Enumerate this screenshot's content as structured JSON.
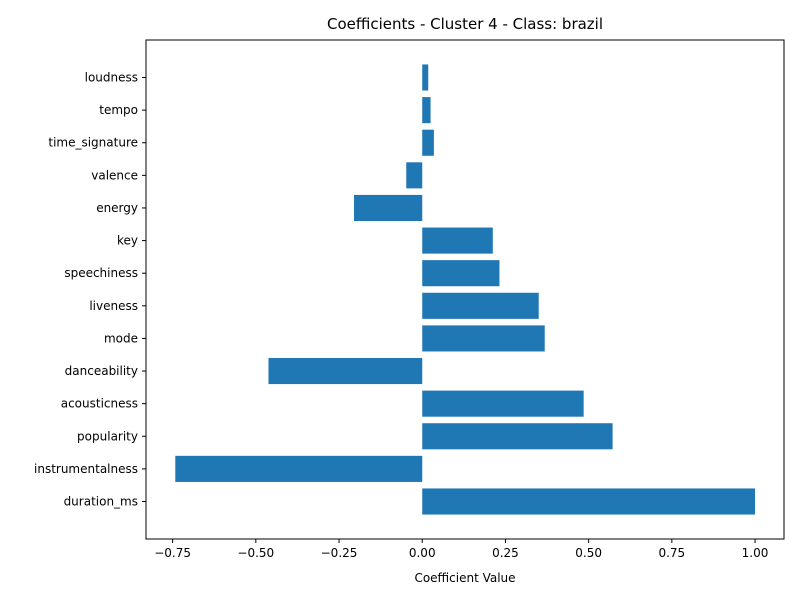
{
  "chart_data": {
    "type": "bar",
    "orientation": "horizontal",
    "title": "Coefficients - Cluster 4 - Class: brazil",
    "xlabel": "Coefficient Value",
    "ylabel": "",
    "xlim": [
      -0.83,
      1.087
    ],
    "xticks": [
      -0.75,
      -0.5,
      -0.25,
      0.0,
      0.25,
      0.5,
      0.75,
      1.0
    ],
    "xtick_labels": [
      "−0.75",
      "−0.50",
      "−0.25",
      "0.00",
      "0.25",
      "0.50",
      "0.75",
      "1.00"
    ],
    "categories": [
      "duration_ms",
      "instrumentalness",
      "popularity",
      "acousticness",
      "danceability",
      "mode",
      "liveness",
      "speechiness",
      "key",
      "energy",
      "valence",
      "time_signature",
      "tempo",
      "loudness"
    ],
    "values": [
      1.0,
      -0.742,
      0.572,
      0.485,
      -0.462,
      0.368,
      0.35,
      0.232,
      0.212,
      -0.205,
      -0.048,
      0.035,
      0.025,
      0.018
    ],
    "grid": false,
    "bar_color": "#1f77b4"
  }
}
